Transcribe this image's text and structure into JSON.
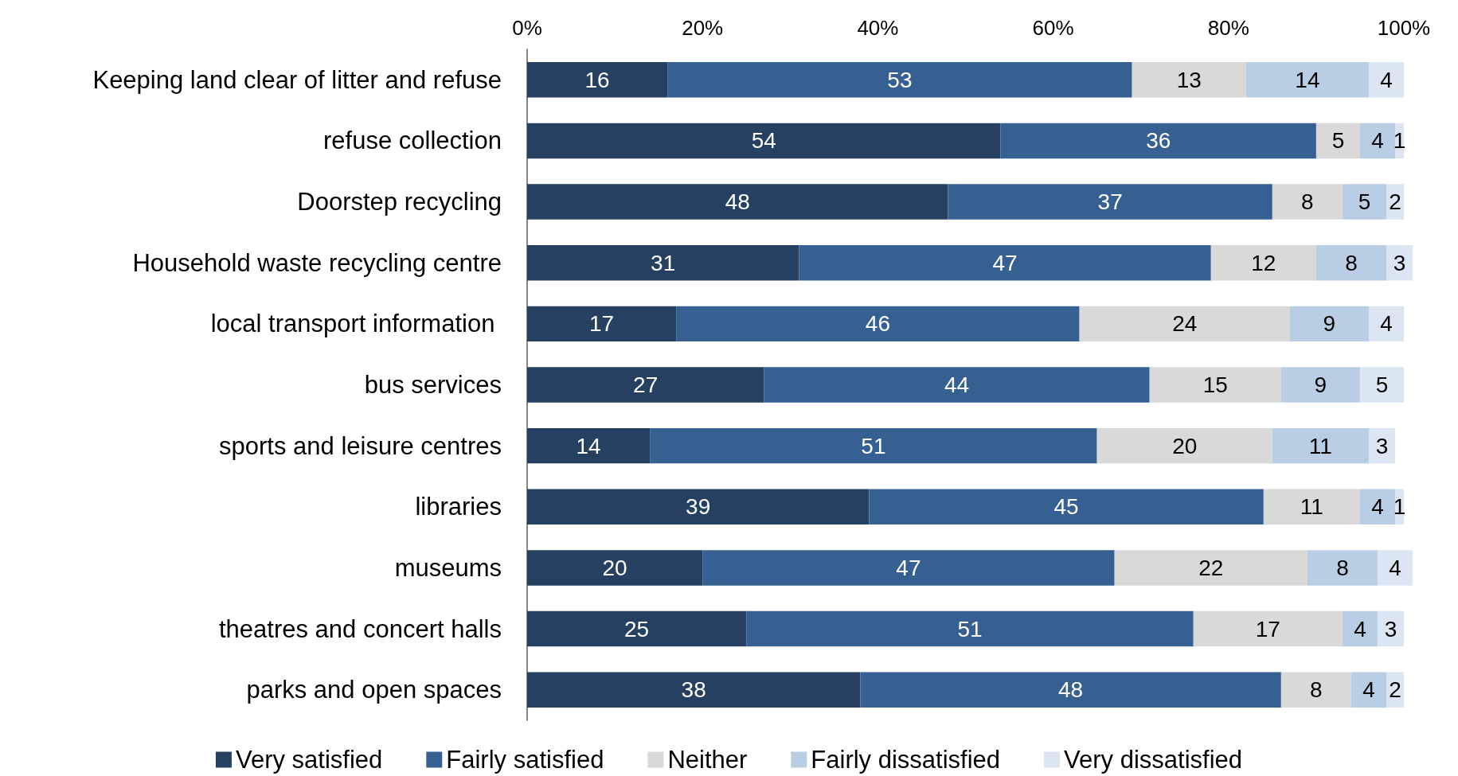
{
  "chart_data": {
    "type": "bar",
    "orientation": "horizontal",
    "stacked": true,
    "data_labels": true,
    "legend": "bottom",
    "grid": false,
    "categories": [
      "Keeping land clear of litter and refuse",
      "refuse collection",
      "Doorstep recycling",
      "Household waste recycling centre",
      "local transport information ",
      "bus services",
      "sports and leisure centres",
      "libraries",
      "museums",
      "theatres and concert halls",
      "parks and open spaces"
    ],
    "xlim": [
      0,
      101
    ],
    "xticks": [
      {
        "value": 0,
        "label": "0%"
      },
      {
        "value": 20,
        "label": "20%"
      },
      {
        "value": 40,
        "label": "40%"
      },
      {
        "value": 60,
        "label": "60%"
      },
      {
        "value": 80,
        "label": "80%"
      },
      {
        "value": 100,
        "label": "100%"
      }
    ],
    "series": [
      {
        "name": "Very satisfied",
        "color": "#254061",
        "values": [
          16,
          54,
          48,
          31,
          17,
          27,
          14,
          39,
          20,
          25,
          38
        ]
      },
      {
        "name": "Fairly satisfied",
        "color": "#376092",
        "values": [
          53,
          36,
          37,
          47,
          46,
          44,
          51,
          45,
          47,
          51,
          48
        ]
      },
      {
        "name": "Neither",
        "color": "#d9d9d9",
        "values": [
          13,
          5,
          8,
          12,
          24,
          15,
          20,
          11,
          22,
          17,
          8
        ]
      },
      {
        "name": "Fairly dissatisfied",
        "color": "#b9cde5",
        "values": [
          14,
          4,
          5,
          8,
          9,
          9,
          11,
          4,
          8,
          4,
          4
        ]
      },
      {
        "name": "Very dissatisfied",
        "color": "#dce6f2",
        "values": [
          4,
          1,
          2,
          3,
          4,
          5,
          3,
          1,
          4,
          3,
          2
        ]
      }
    ]
  }
}
